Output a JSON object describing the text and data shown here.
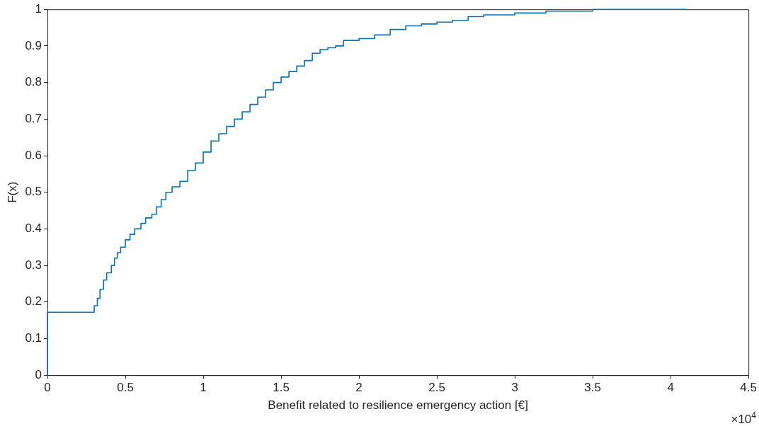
{
  "chart_data": {
    "type": "step",
    "xlabel": "Benefit related to resilience emergency action [€]",
    "ylabel": "F(x)",
    "series": [
      {
        "color": "#0072bd",
        "x": [
          0,
          0,
          0.3,
          0.32,
          0.337,
          0.36,
          0.38,
          0.41,
          0.43,
          0.449,
          0.47,
          0.5,
          0.53,
          0.56,
          0.6,
          0.63,
          0.67,
          0.7,
          0.73,
          0.76,
          0.8,
          0.85,
          0.9,
          0.95,
          1.0,
          1.05,
          1.1,
          1.15,
          1.2,
          1.25,
          1.3,
          1.35,
          1.4,
          1.45,
          1.5,
          1.55,
          1.6,
          1.65,
          1.7,
          1.75,
          1.8,
          1.85,
          1.9,
          2.0,
          2.1,
          2.2,
          2.3,
          2.4,
          2.5,
          2.6,
          2.7,
          2.8,
          3.0,
          3.2,
          3.5,
          4.1
        ],
        "values": [
          0,
          0.172,
          0.172,
          0.19,
          0.21,
          0.235,
          0.26,
          0.28,
          0.3,
          0.32,
          0.335,
          0.35,
          0.37,
          0.385,
          0.4,
          0.415,
          0.43,
          0.44,
          0.46,
          0.48,
          0.5,
          0.515,
          0.53,
          0.56,
          0.58,
          0.61,
          0.64,
          0.66,
          0.68,
          0.7,
          0.72,
          0.74,
          0.76,
          0.78,
          0.8,
          0.815,
          0.83,
          0.845,
          0.86,
          0.88,
          0.89,
          0.895,
          0.9,
          0.915,
          0.92,
          0.93,
          0.945,
          0.955,
          0.96,
          0.965,
          0.97,
          0.98,
          0.985,
          0.99,
          0.995,
          1.0
        ]
      }
    ],
    "xlim": [
      0,
      4.5
    ],
    "xticks": [
      0,
      0.5,
      1,
      1.5,
      2,
      2.5,
      3,
      3.5,
      4,
      4.5
    ],
    "ylim": [
      0,
      1
    ],
    "yticks": [
      0,
      0.1,
      0.2,
      0.3,
      0.4,
      0.5,
      0.6,
      0.7,
      0.8,
      0.9,
      1
    ],
    "grid": false,
    "legend": false,
    "marker": "none",
    "line_style": "solid",
    "annotations": [
      "×10$^{4}$"
    ]
  }
}
